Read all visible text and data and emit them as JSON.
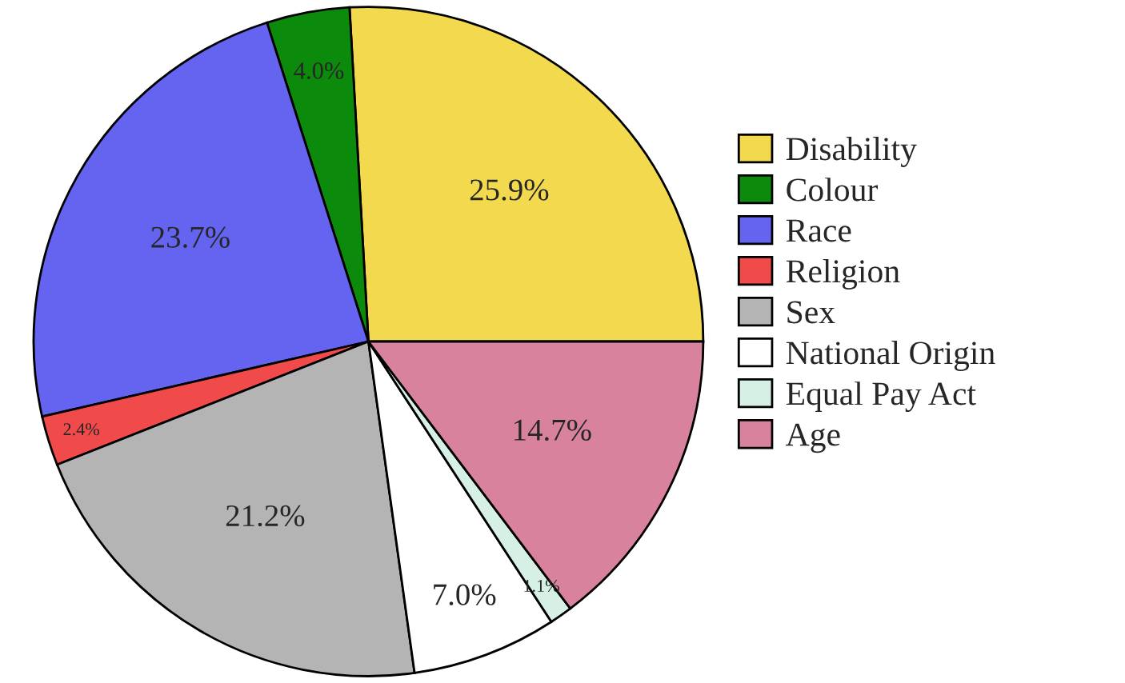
{
  "chart_data": {
    "type": "pie",
    "categories": [
      "Disability",
      "Colour",
      "Race",
      "Religion",
      "Sex",
      "National Origin",
      "Equal Pay Act",
      "Age"
    ],
    "values": [
      25.9,
      4.0,
      23.7,
      2.4,
      21.2,
      7.0,
      1.1,
      14.7
    ],
    "value_labels": [
      "25.9%",
      "4.0%",
      "23.7%",
      "2.4%",
      "21.2%",
      "7.0%",
      "1.1%",
      "14.7%"
    ],
    "colors": [
      "#f2d94e",
      "#0b8a0b",
      "#6464f0",
      "#f04a4a",
      "#b4b4b4",
      "#ffffff",
      "#d6f0e6",
      "#d8829e"
    ],
    "legend": "right"
  }
}
